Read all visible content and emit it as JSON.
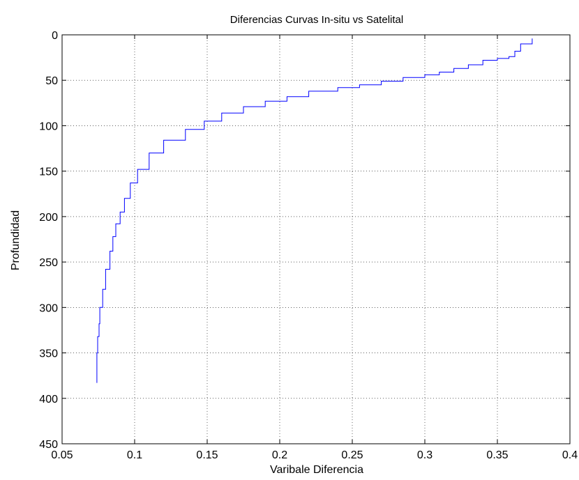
{
  "chart_data": {
    "type": "line",
    "title": "Diferencias Curvas In-situ vs Satelital",
    "xlabel": "Varibale Diferencia",
    "ylabel": "Profundidad",
    "xlim": [
      0.05,
      0.4
    ],
    "ylim": [
      0,
      450
    ],
    "y_reversed": true,
    "grid": true,
    "x_ticks": [
      "0.05",
      "0.1",
      "0.15",
      "0.2",
      "0.25",
      "0.3",
      "0.35",
      "0.4"
    ],
    "y_ticks": [
      "0",
      "50",
      "100",
      "150",
      "200",
      "250",
      "300",
      "350",
      "400",
      "450"
    ],
    "series": [
      {
        "color": "#0000ff",
        "points": [
          [
            0.374,
            4
          ],
          [
            0.366,
            10
          ],
          [
            0.362,
            18
          ],
          [
            0.358,
            24
          ],
          [
            0.35,
            26
          ],
          [
            0.34,
            28
          ],
          [
            0.33,
            33
          ],
          [
            0.32,
            37
          ],
          [
            0.31,
            41
          ],
          [
            0.3,
            44
          ],
          [
            0.285,
            47
          ],
          [
            0.27,
            51
          ],
          [
            0.255,
            55
          ],
          [
            0.24,
            58
          ],
          [
            0.22,
            62
          ],
          [
            0.205,
            68
          ],
          [
            0.19,
            73
          ],
          [
            0.175,
            79
          ],
          [
            0.16,
            86
          ],
          [
            0.148,
            95
          ],
          [
            0.135,
            104
          ],
          [
            0.12,
            116
          ],
          [
            0.11,
            130
          ],
          [
            0.102,
            148
          ],
          [
            0.097,
            163
          ],
          [
            0.093,
            180
          ],
          [
            0.09,
            195
          ],
          [
            0.087,
            208
          ],
          [
            0.085,
            222
          ],
          [
            0.083,
            238
          ],
          [
            0.08,
            258
          ],
          [
            0.078,
            280
          ],
          [
            0.076,
            300
          ],
          [
            0.0755,
            318
          ],
          [
            0.0745,
            332
          ],
          [
            0.074,
            350
          ],
          [
            0.074,
            383
          ]
        ]
      }
    ]
  }
}
